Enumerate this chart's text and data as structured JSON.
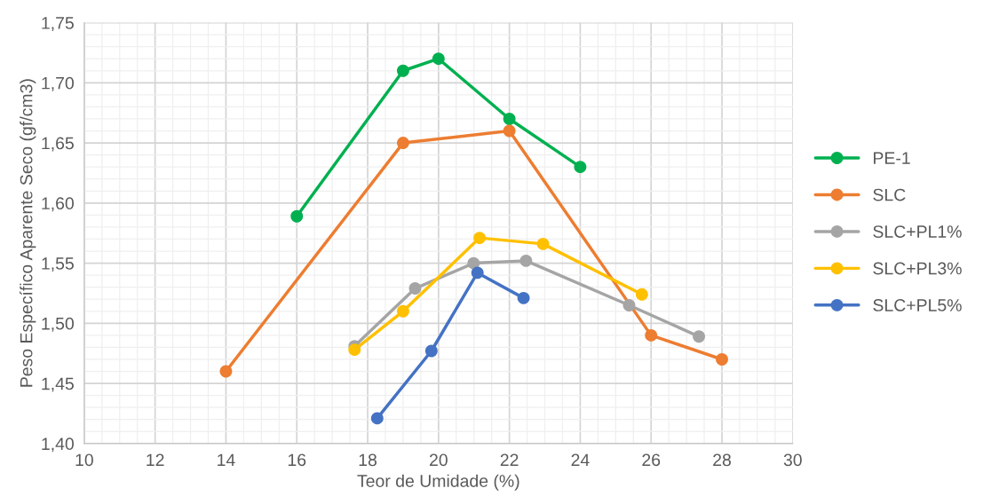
{
  "chart_data": {
    "type": "line",
    "xlabel": "Teor de Umidade (%)",
    "ylabel": "Peso Específico Aparente Seco (gf/cm3)",
    "xlim": [
      10,
      30
    ],
    "xticks": [
      10,
      12,
      14,
      16,
      18,
      20,
      22,
      24,
      26,
      28,
      30
    ],
    "ylim": [
      1.4,
      1.75
    ],
    "yticks": [
      {
        "value": 1.4,
        "label": "1,40"
      },
      {
        "value": 1.45,
        "label": "1,45"
      },
      {
        "value": 1.5,
        "label": "1,50"
      },
      {
        "value": 1.55,
        "label": "1,55"
      },
      {
        "value": 1.6,
        "label": "1,60"
      },
      {
        "value": 1.65,
        "label": "1,65"
      },
      {
        "value": 1.7,
        "label": "1,70"
      },
      {
        "value": 1.75,
        "label": "1,75"
      }
    ],
    "grid": true,
    "legend": "right",
    "marker": "circle",
    "line_style": "solid",
    "series": [
      {
        "name": "PE-1",
        "color": "#00b050",
        "x": [
          16,
          19,
          20,
          22,
          24
        ],
        "values": [
          1.589,
          1.71,
          1.72,
          1.67,
          1.63
        ]
      },
      {
        "name": "SLC",
        "color": "#ed7d31",
        "x": [
          14,
          19,
          22,
          26,
          28
        ],
        "values": [
          1.46,
          1.65,
          1.66,
          1.49,
          1.47
        ]
      },
      {
        "name": "SLC+PL1%",
        "color": "#a5a5a5",
        "x": [
          17.63,
          19.34,
          20.99,
          22.47,
          25.38,
          27.35
        ],
        "values": [
          1.481,
          1.529,
          1.55,
          1.552,
          1.515,
          1.489
        ]
      },
      {
        "name": "SLC+PL3%",
        "color": "#ffc000",
        "x": [
          17.63,
          19.0,
          21.16,
          22.95,
          25.74
        ],
        "values": [
          1.478,
          1.51,
          1.571,
          1.566,
          1.524
        ]
      },
      {
        "name": "SLC+PL5%",
        "color": "#4472c4",
        "x": [
          18.27,
          19.8,
          21.1,
          22.4
        ],
        "values": [
          1.421,
          1.477,
          1.542,
          1.521
        ]
      }
    ]
  }
}
